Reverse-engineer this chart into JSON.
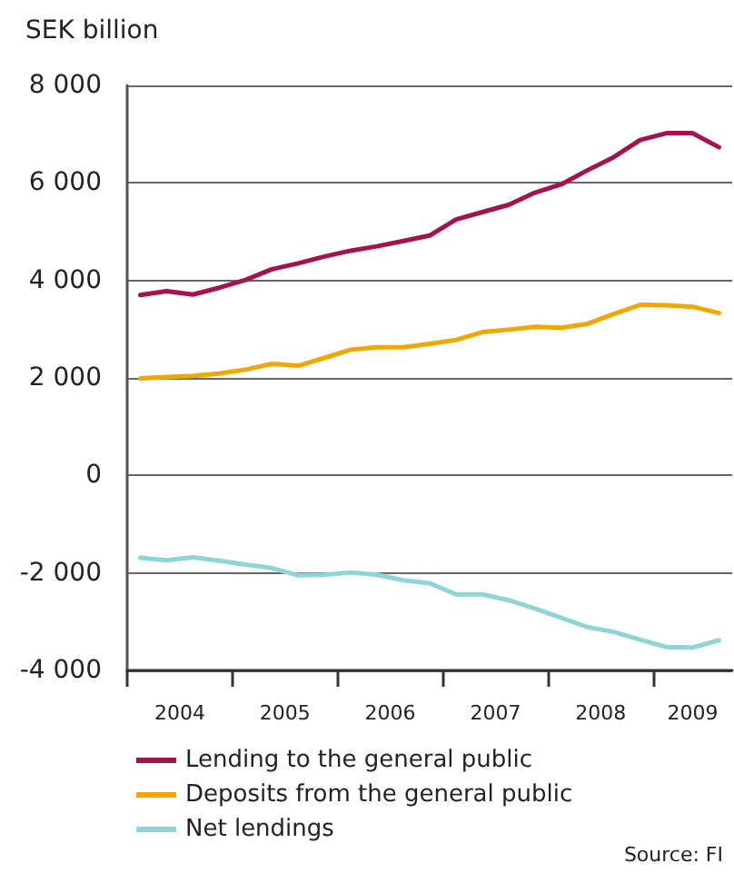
{
  "chart_data": {
    "type": "line",
    "ylabel": "SEK billion",
    "x": [
      2004.125,
      2004.375,
      2004.625,
      2004.875,
      2005.125,
      2005.375,
      2005.625,
      2005.875,
      2006.125,
      2006.375,
      2006.625,
      2006.875,
      2007.125,
      2007.375,
      2007.625,
      2007.875,
      2008.125,
      2008.375,
      2008.625,
      2008.875,
      2009.125,
      2009.375,
      2009.625
    ],
    "series": [
      {
        "name": "Lending to the general public",
        "color": "#a5124d",
        "values": [
          3700,
          3780,
          3710,
          3850,
          4010,
          4230,
          4350,
          4490,
          4610,
          4700,
          4810,
          4920,
          5250,
          5400,
          5550,
          5800,
          5970,
          6260,
          6530,
          6880,
          7020,
          7020,
          6730
        ]
      },
      {
        "name": "Deposits from the general public",
        "color": "#f0a800",
        "values": [
          1990,
          2020,
          2040,
          2090,
          2170,
          2290,
          2250,
          2410,
          2580,
          2630,
          2630,
          2700,
          2780,
          2940,
          2990,
          3050,
          3030,
          3110,
          3310,
          3500,
          3490,
          3460,
          3330
        ]
      },
      {
        "name": "Net lendings",
        "color": "#8fd4d6",
        "values": [
          -1690,
          -1740,
          -1680,
          -1750,
          -1830,
          -1900,
          -2050,
          -2040,
          -1990,
          -2040,
          -2150,
          -2210,
          -2440,
          -2440,
          -2560,
          -2730,
          -2920,
          -3110,
          -3210,
          -3370,
          -3520,
          -3530,
          -3380
        ]
      }
    ],
    "xlim": [
      2004,
      2009.75
    ],
    "xticks": [
      {
        "value": 2004,
        "label": null
      },
      {
        "value": 2004.5,
        "label": "2004"
      },
      {
        "value": 2005,
        "label": null
      },
      {
        "value": 2005.5,
        "label": "2005"
      },
      {
        "value": 2006,
        "label": null
      },
      {
        "value": 2006.5,
        "label": "2006"
      },
      {
        "value": 2007,
        "label": null
      },
      {
        "value": 2007.5,
        "label": "2007"
      },
      {
        "value": 2008,
        "label": null
      },
      {
        "value": 2008.5,
        "label": "2008"
      },
      {
        "value": 2009,
        "label": null
      },
      {
        "value": 2009.375,
        "label": "2009"
      }
    ],
    "ylim": [
      -4000,
      8000
    ],
    "yticks": [
      {
        "value": -4000,
        "label": "-4 000"
      },
      {
        "value": -2000,
        "label": "-2 000"
      },
      0,
      {
        "value": 2000,
        "label": "2 000"
      },
      {
        "value": 4000,
        "label": "4 000"
      },
      {
        "value": 6000,
        "label": "6 000"
      },
      {
        "value": 8000,
        "label": "8 000"
      }
    ],
    "grid": "y",
    "legend": "bottom",
    "marker": "none",
    "line_style": "solid",
    "annotations": [
      "Source: FI"
    ]
  }
}
